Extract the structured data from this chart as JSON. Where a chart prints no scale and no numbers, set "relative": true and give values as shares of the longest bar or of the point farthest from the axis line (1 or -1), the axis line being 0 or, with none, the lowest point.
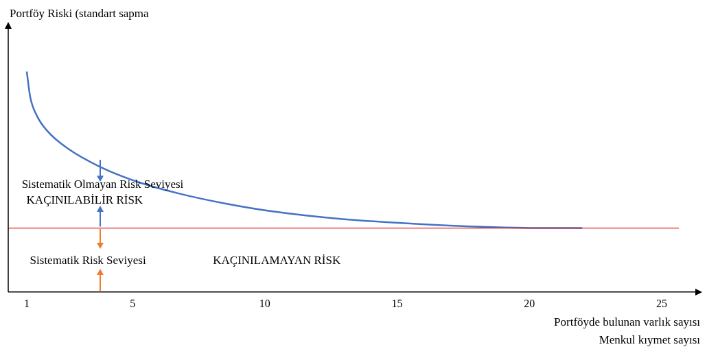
{
  "chart_data": {
    "type": "line",
    "relative": true,
    "xlabel": "Portföyde bulunan varlık sayısı\nMenkul kıymet sayısı",
    "ylabel": "Portföy Riski (standart sapma",
    "xlim": [
      0.3,
      26.3
    ],
    "xticks": [
      1,
      5,
      10,
      15,
      20,
      25
    ],
    "grid": false,
    "legend": false,
    "marker": "none",
    "line_style": "solid",
    "series": [
      {
        "color": "#4472c4",
        "x": [
          1.0,
          1.13,
          1.38,
          1.78,
          2.56,
          3.73,
          5.17,
          6.74,
          8.56,
          10.39,
          13.0,
          15.6,
          18.2,
          20.8,
          22.0
        ],
        "values": [
          1.0,
          0.885,
          0.8,
          0.73,
          0.65,
          0.57,
          0.5,
          0.447,
          0.4,
          0.364,
          0.33,
          0.31,
          0.296,
          0.29,
          0.29
        ]
      }
    ],
    "ref_lines": [
      {
        "axis": "y",
        "value": 0.29,
        "color": "#e02020"
      }
    ],
    "annotations": [
      "Sistematik Olmayan Risk Seviyesi",
      "KAÇINILABİLİR RİSK",
      "Sistematik Risk Seviyesi",
      "KAÇINILAMAYAN RİSK"
    ]
  }
}
